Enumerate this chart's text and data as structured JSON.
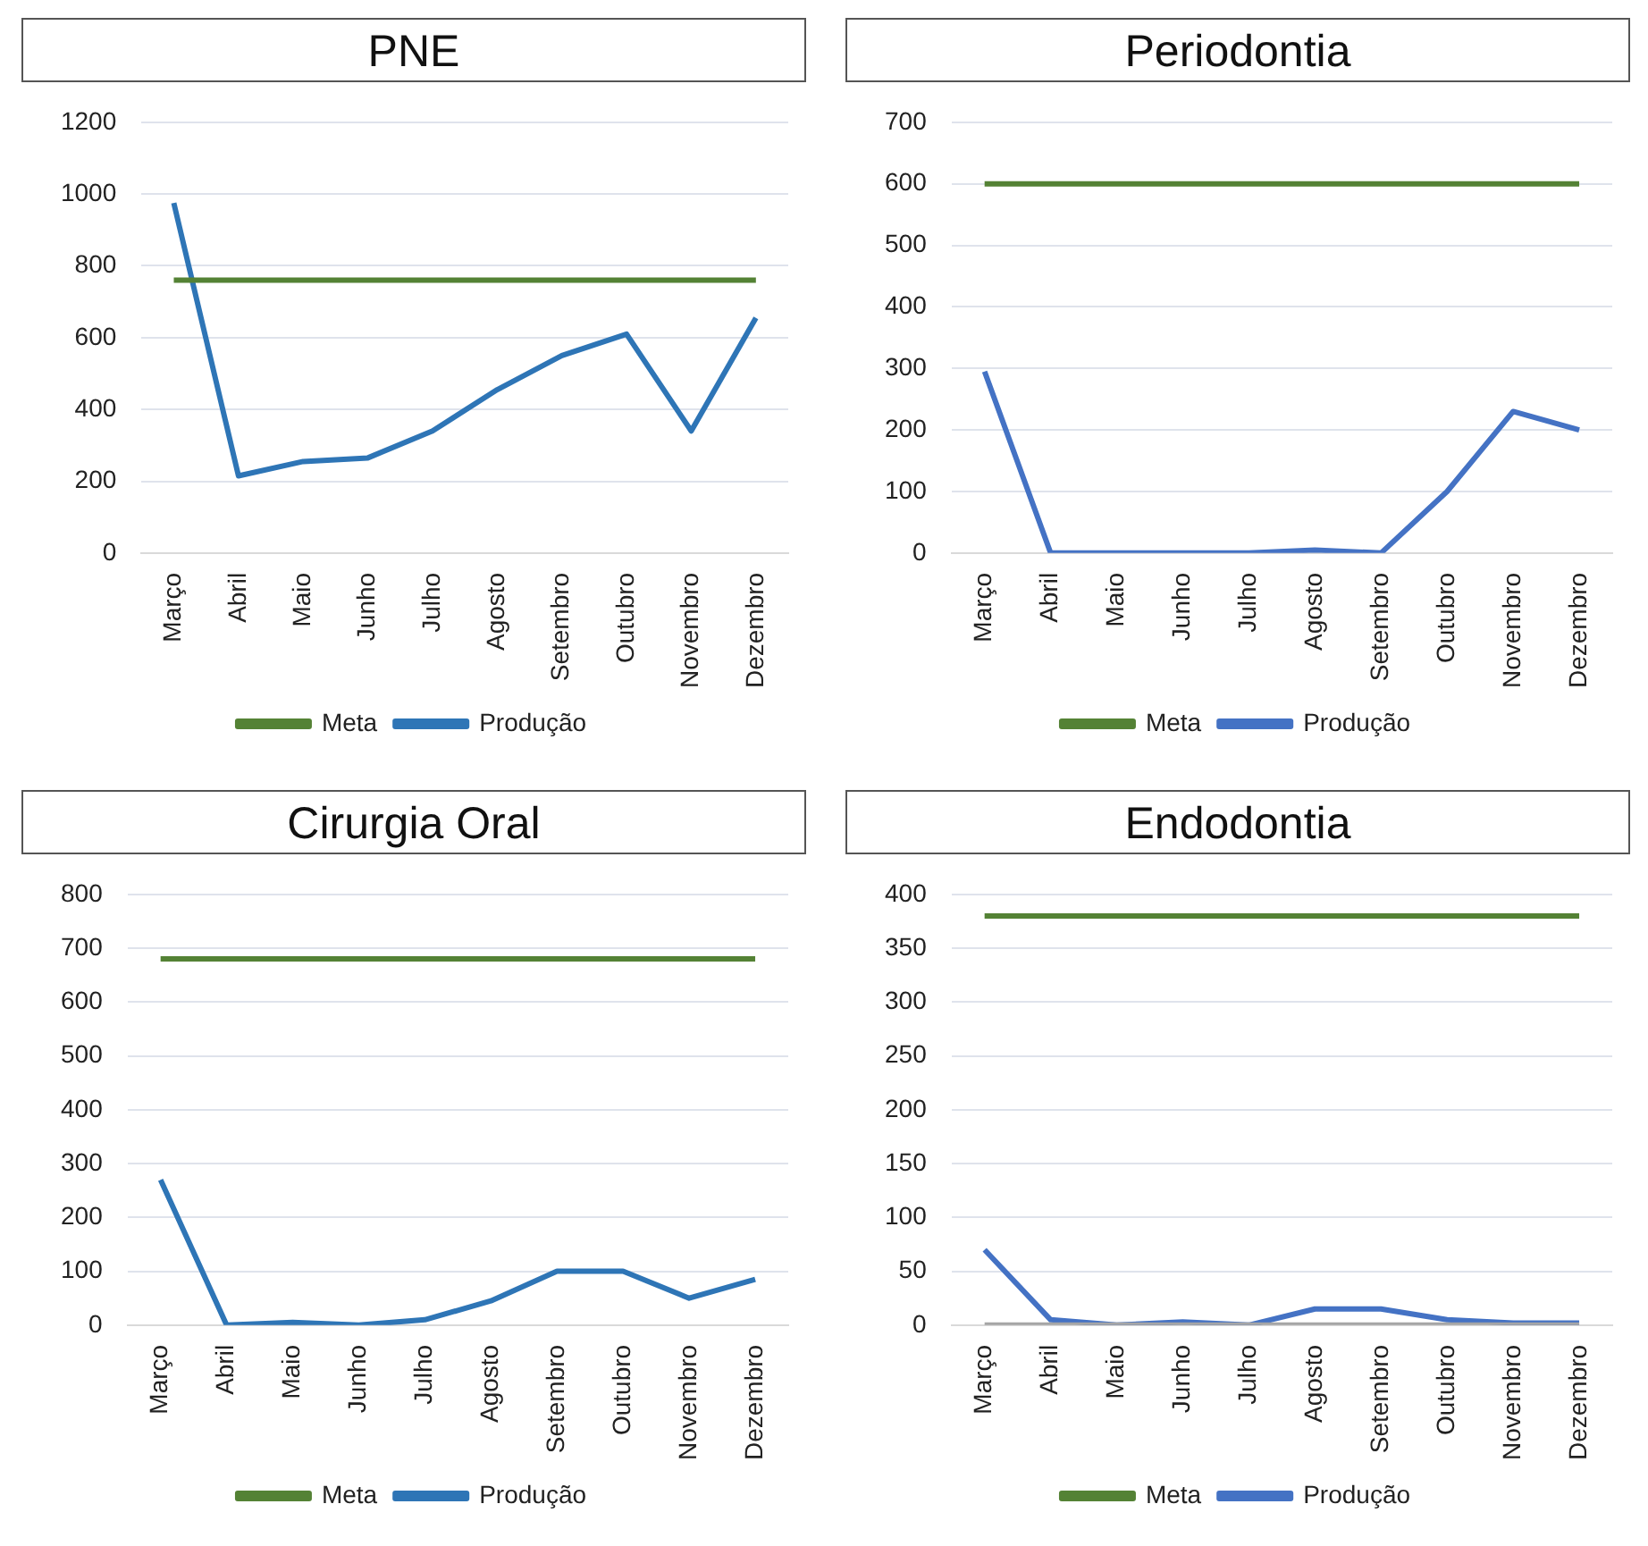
{
  "chart_data": [
    {
      "type": "line",
      "title": "PNE",
      "categories": [
        "Março",
        "Abril",
        "Maio",
        "Junho",
        "Julho",
        "Agosto",
        "Setembro",
        "Outubro",
        "Novembro",
        "Dezembro"
      ],
      "series": [
        {
          "name": "Meta",
          "color": "#548235",
          "values": [
            760,
            760,
            760,
            760,
            760,
            760,
            760,
            760,
            760,
            760
          ]
        },
        {
          "name": "Produção",
          "color": "#2e75b6",
          "values": [
            975,
            215,
            255,
            265,
            340,
            455,
            550,
            610,
            340,
            655
          ]
        }
      ],
      "ylim": [
        0,
        1200
      ],
      "yticks": [
        0,
        200,
        400,
        600,
        800,
        1000,
        1200
      ],
      "grid": "y",
      "legend": "bottom",
      "marker": "none"
    },
    {
      "type": "line",
      "title": "Periodontia",
      "categories": [
        "Março",
        "Abril",
        "Maio",
        "Junho",
        "Julho",
        "Agosto",
        "Setembro",
        "Outubro",
        "Novembro",
        "Dezembro"
      ],
      "series": [
        {
          "name": "Meta",
          "color": "#548235",
          "values": [
            600,
            600,
            600,
            600,
            600,
            600,
            600,
            600,
            600,
            600
          ]
        },
        {
          "name": "Produção",
          "color": "#4472c4",
          "values": [
            295,
            0,
            0,
            0,
            0,
            5,
            0,
            100,
            230,
            200
          ]
        }
      ],
      "ylim": [
        0,
        700
      ],
      "yticks": [
        0,
        100,
        200,
        300,
        400,
        500,
        600,
        700
      ],
      "grid": "y",
      "legend": "bottom",
      "marker": "none"
    },
    {
      "type": "line",
      "title": "Cirurgia Oral",
      "categories": [
        "Março",
        "Abril",
        "Maio",
        "Junho",
        "Julho",
        "Agosto",
        "Setembro",
        "Outubro",
        "Novembro",
        "Dezembro"
      ],
      "series": [
        {
          "name": "Meta",
          "color": "#548235",
          "values": [
            680,
            680,
            680,
            680,
            680,
            680,
            680,
            680,
            680,
            680
          ]
        },
        {
          "name": "Produção",
          "color": "#2e75b6",
          "values": [
            270,
            0,
            5,
            0,
            10,
            45,
            100,
            100,
            50,
            85
          ]
        }
      ],
      "ylim": [
        0,
        800
      ],
      "yticks": [
        0,
        100,
        200,
        300,
        400,
        500,
        600,
        700,
        800
      ],
      "grid": "y",
      "legend": "bottom",
      "marker": "none"
    },
    {
      "type": "line",
      "title": "Endodontia",
      "categories": [
        "Março",
        "Abril",
        "Maio",
        "Junho",
        "Julho",
        "Agosto",
        "Setembro",
        "Outubro",
        "Novembro",
        "Dezembro"
      ],
      "series": [
        {
          "color": "#a5a5a5",
          "values": [
            0,
            0,
            0,
            0,
            0,
            0,
            0,
            0,
            0,
            0
          ]
        },
        {
          "name": "Meta",
          "color": "#548235",
          "values": [
            380,
            380,
            380,
            380,
            380,
            380,
            380,
            380,
            380,
            380
          ]
        },
        {
          "name": "Produção",
          "color": "#4472c4",
          "values": [
            70,
            5,
            0,
            3,
            0,
            15,
            15,
            5,
            2,
            2
          ]
        }
      ],
      "ylim": [
        0,
        400
      ],
      "yticks": [
        0,
        50,
        100,
        150,
        200,
        250,
        300,
        350,
        400
      ],
      "grid": "y",
      "legend": "bottom",
      "marker": "none"
    }
  ]
}
